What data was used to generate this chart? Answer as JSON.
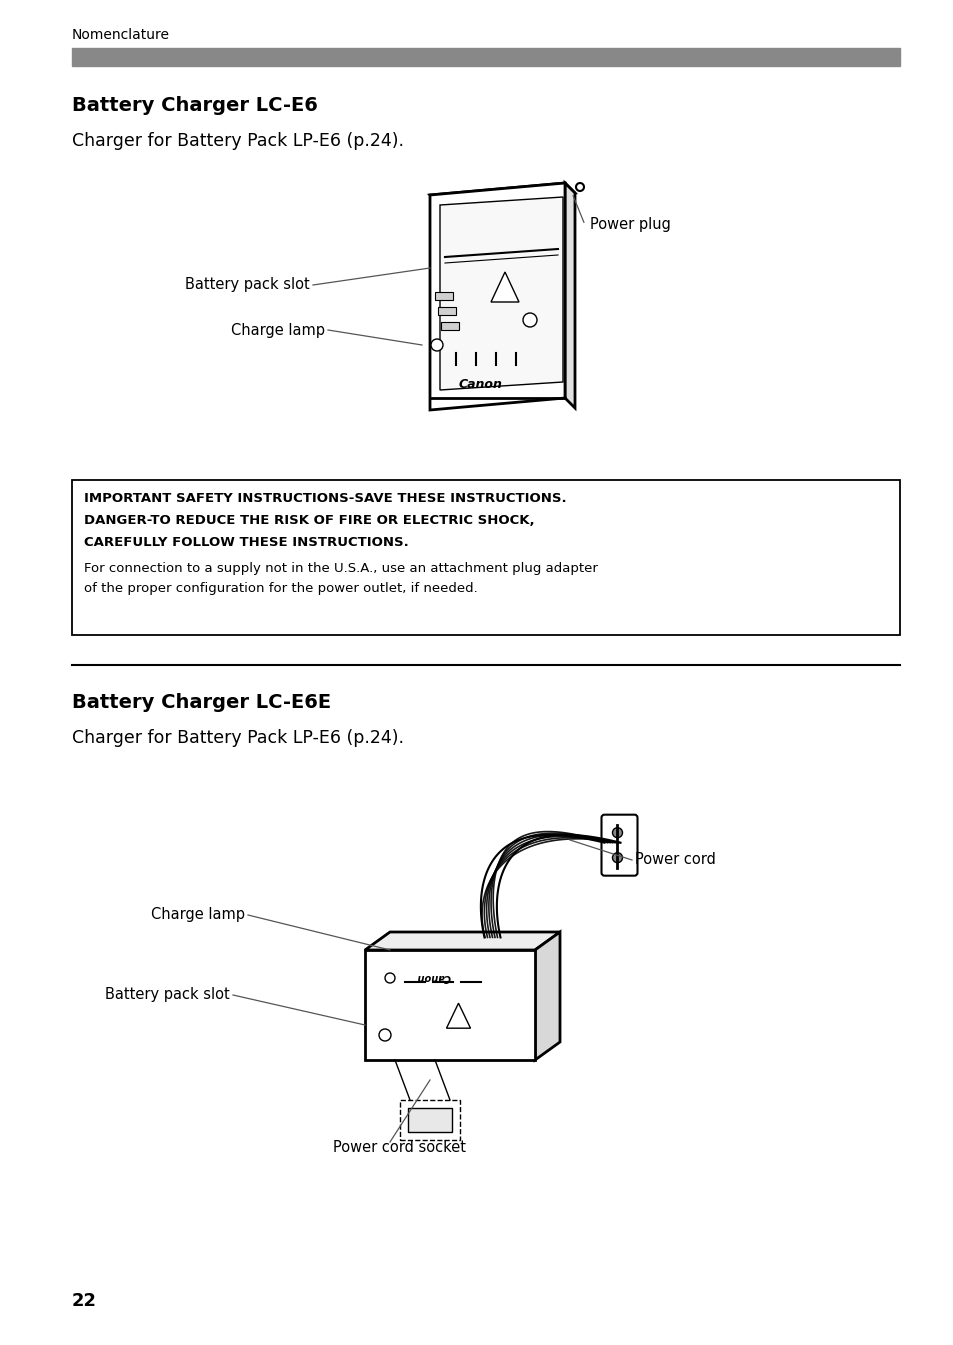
{
  "page_bg": "#ffffff",
  "header_text": "Nomenclature",
  "header_bar_color": "#888888",
  "section1_title": "Battery Charger LC-E6",
  "section1_subtitle": "Charger for Battery Pack LP-E6 (p.24).",
  "safety_bold1": "IMPORTANT SAFETY INSTRUCTIONS-SAVE THESE INSTRUCTIONS.",
  "safety_bold2": "DANGER-TO REDUCE THE RISK OF FIRE OR ELECTRIC SHOCK,",
  "safety_bold3": "CAREFULLY FOLLOW THESE INSTRUCTIONS.",
  "safety_normal1": "For connection to a supply not in the U.S.A., use an attachment plug adapter",
  "safety_normal2": "of the proper configuration for the power outlet, if needed.",
  "section2_title": "Battery Charger LC-E6E",
  "section2_subtitle": "Charger for Battery Pack LP-E6 (p.24).",
  "page_number": "22",
  "lm": 0.075,
  "rm": 0.945,
  "text_color": "#000000",
  "bar_color": "#888888"
}
